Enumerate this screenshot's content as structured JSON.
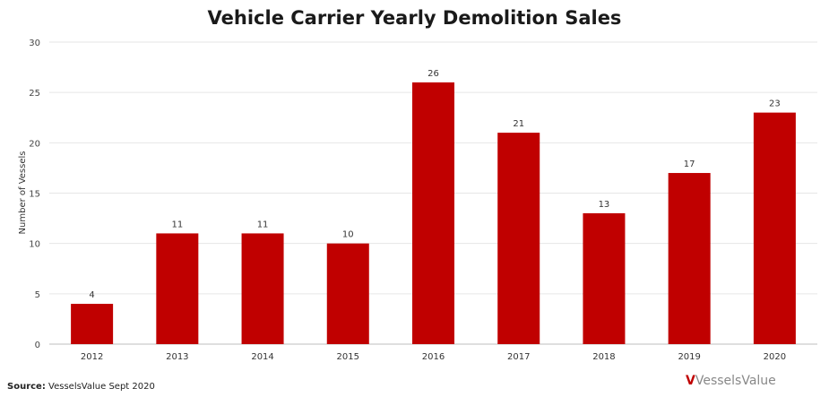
{
  "chart_data": {
    "type": "bar",
    "title": "Vehicle Carrier Yearly Demolition Sales",
    "ylabel": "Number of Vessels",
    "xlabel": "",
    "categories": [
      "2012",
      "2013",
      "2014",
      "2015",
      "2016",
      "2017",
      "2018",
      "2019",
      "2020"
    ],
    "values": [
      4,
      11,
      11,
      10,
      26,
      21,
      13,
      17,
      23
    ],
    "ylim": [
      0,
      30
    ],
    "yticks": [
      0,
      5,
      10,
      15,
      20,
      25,
      30
    ],
    "grid": true,
    "bar_color": "#c00000"
  },
  "footer": {
    "source_label": "Source:",
    "source_text": "VesselsValue Sept 2020",
    "logo_text": "VesselsValue"
  }
}
